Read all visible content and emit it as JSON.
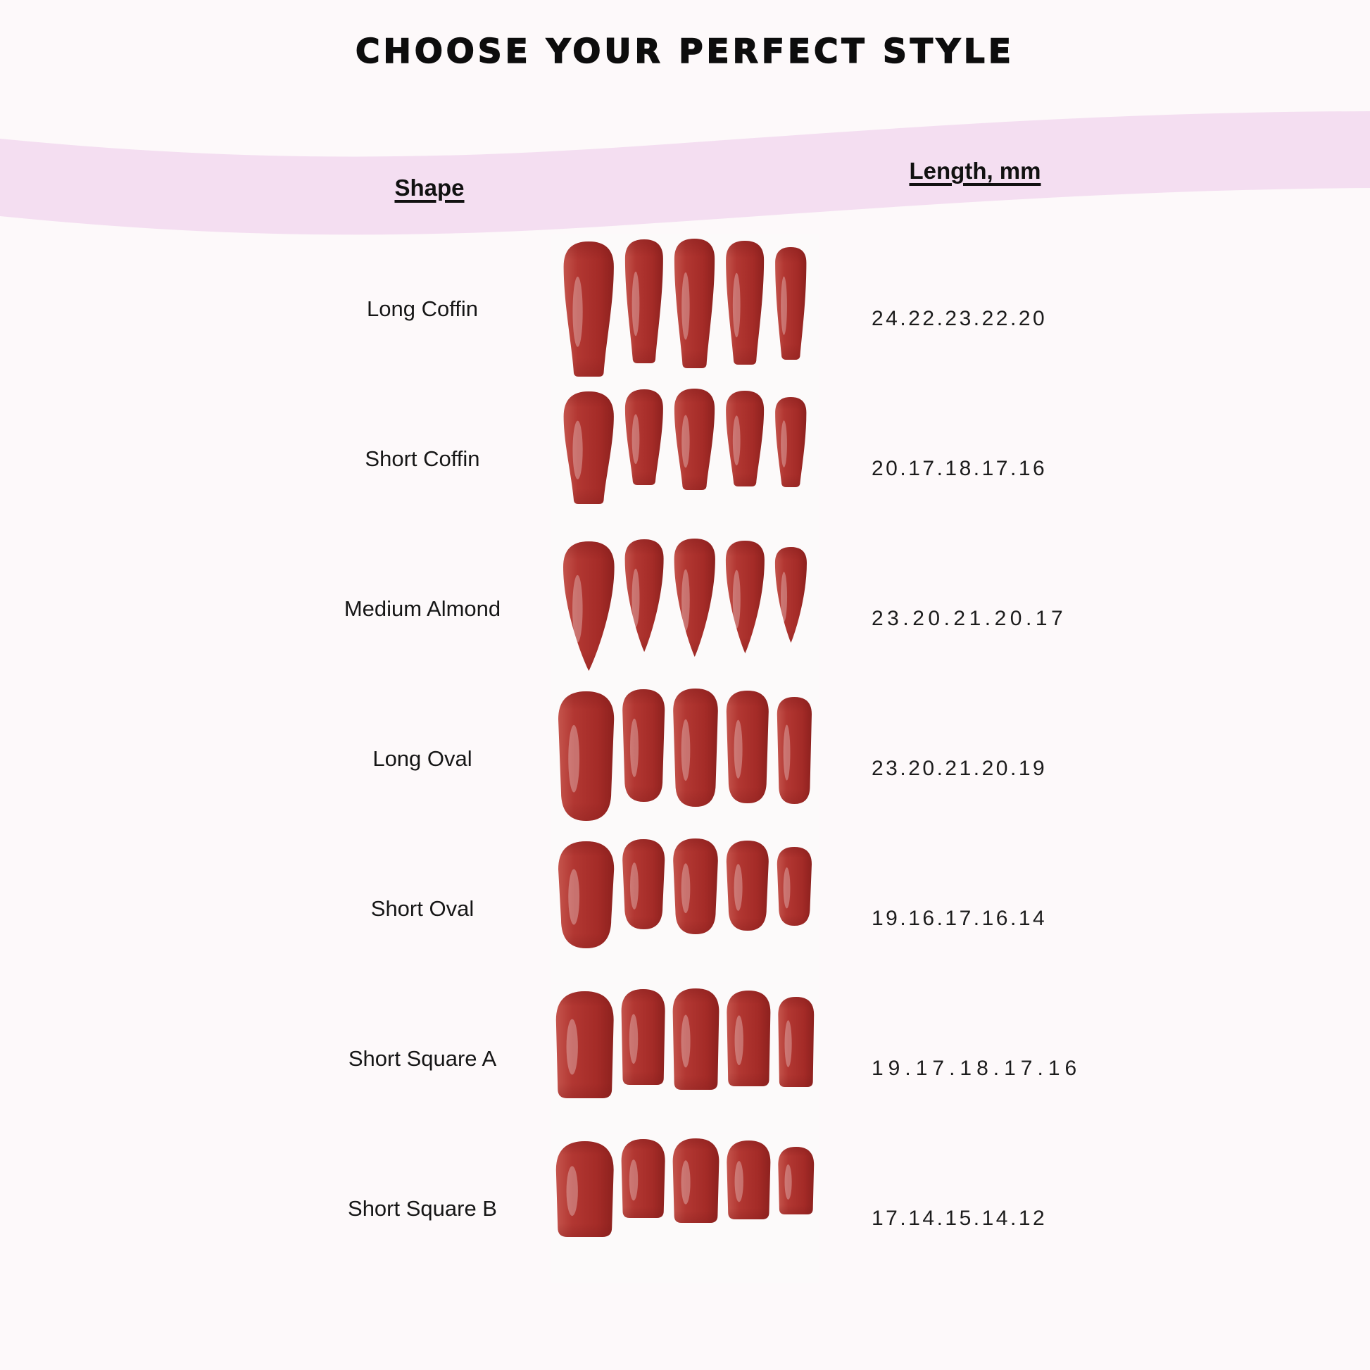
{
  "page": {
    "title": "CHOOSE YOUR PERFECT STYLE",
    "background_color": "#fdf9fa",
    "band_color": "#f4def1",
    "nail_red": "#b23732",
    "text_color": "#111111"
  },
  "table": {
    "headers": {
      "shape": "Shape",
      "length": "Length, mm"
    },
    "rows": [
      {
        "shape": "Long Coffin",
        "lengths": "24.22.23.22.20",
        "nail_type": "coffin"
      },
      {
        "shape": "Short Coffin",
        "lengths": "20.17.18.17.16",
        "nail_type": "coffin"
      },
      {
        "shape": "Medium Almond",
        "lengths": "23.20.21.20.17",
        "nail_type": "almond"
      },
      {
        "shape": "Long Oval",
        "lengths": "23.20.21.20.19",
        "nail_type": "oval"
      },
      {
        "shape": "Short Oval",
        "lengths": "19.16.17.16.14",
        "nail_type": "oval"
      },
      {
        "shape": "Short Square A",
        "lengths": "19.17.18.17.16",
        "nail_type": "square"
      },
      {
        "shape": "Short Square B",
        "lengths": "17.14.15.14.12",
        "nail_type": "square"
      }
    ]
  },
  "chart_data": {
    "type": "table",
    "title": "CHOOSE YOUR PERFECT STYLE",
    "columns": [
      "Shape",
      "Length, mm"
    ],
    "rows": [
      {
        "shape": "Long Coffin",
        "lengths_mm": [
          24,
          22,
          23,
          22,
          20
        ]
      },
      {
        "shape": "Short Coffin",
        "lengths_mm": [
          20,
          17,
          18,
          17,
          16
        ]
      },
      {
        "shape": "Medium Almond",
        "lengths_mm": [
          23,
          20,
          21,
          20,
          17
        ]
      },
      {
        "shape": "Long Oval",
        "lengths_mm": [
          23,
          20,
          21,
          20,
          19
        ]
      },
      {
        "shape": "Short Oval",
        "lengths_mm": [
          19,
          16,
          17,
          16,
          14
        ]
      },
      {
        "shape": "Short Square A",
        "lengths_mm": [
          19,
          17,
          18,
          17,
          16
        ]
      },
      {
        "shape": "Short Square B",
        "lengths_mm": [
          17,
          14,
          15,
          14,
          12
        ]
      }
    ]
  }
}
